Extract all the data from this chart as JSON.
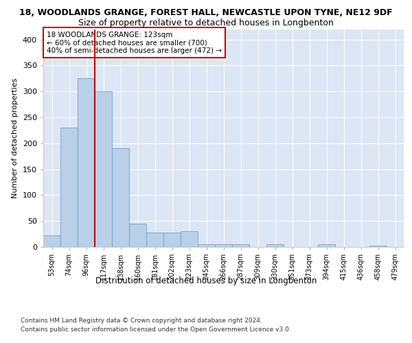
{
  "title": "18, WOODLANDS GRANGE, FOREST HALL, NEWCASTLE UPON TYNE, NE12 9DF",
  "subtitle": "Size of property relative to detached houses in Longbenton",
  "xlabel": "Distribution of detached houses by size in Longbenton",
  "ylabel": "Number of detached properties",
  "categories": [
    "53sqm",
    "74sqm",
    "96sqm",
    "117sqm",
    "138sqm",
    "160sqm",
    "181sqm",
    "202sqm",
    "223sqm",
    "245sqm",
    "266sqm",
    "287sqm",
    "309sqm",
    "330sqm",
    "351sqm",
    "373sqm",
    "394sqm",
    "415sqm",
    "436sqm",
    "458sqm",
    "479sqm"
  ],
  "values": [
    22,
    230,
    325,
    300,
    190,
    45,
    28,
    28,
    30,
    5,
    5,
    5,
    0,
    5,
    0,
    0,
    5,
    0,
    0,
    3,
    0
  ],
  "bar_color": "#b8d0e8",
  "bar_edge_color": "#6699bb",
  "vline_color": "#cc0000",
  "vline_position": 2.5,
  "annotation_text": "18 WOODLANDS GRANGE: 123sqm\n← 60% of detached houses are smaller (700)\n40% of semi-detached houses are larger (472) →",
  "annotation_box_color": "#ffffff",
  "annotation_box_edge": "#cc0000",
  "ylim": [
    0,
    420
  ],
  "yticks": [
    0,
    50,
    100,
    150,
    200,
    250,
    300,
    350,
    400
  ],
  "plot_bg_color": "#dce6f5",
  "title_fontsize": 9,
  "subtitle_fontsize": 9,
  "footer_line1": "Contains HM Land Registry data © Crown copyright and database right 2024.",
  "footer_line2": "Contains public sector information licensed under the Open Government Licence v3.0."
}
